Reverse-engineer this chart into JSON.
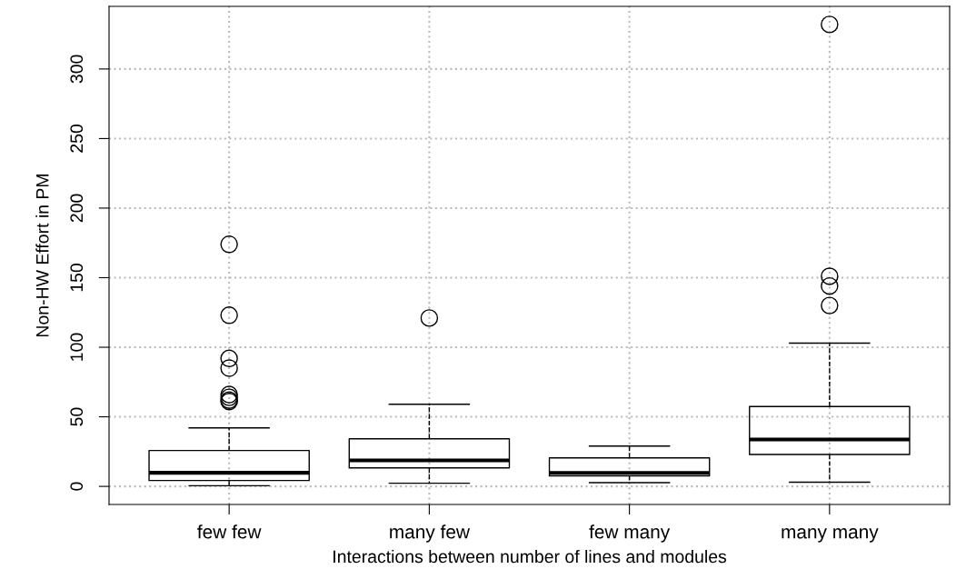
{
  "chart_data": {
    "type": "box",
    "xlabel": "Interactions between number of lines and modules",
    "ylabel": "Non-HW Effort in PM",
    "categories": [
      "few few",
      "many few",
      "few many",
      "many many"
    ],
    "boxes": [
      {
        "low": 0.5,
        "q1": 4.2,
        "median": 9.8,
        "q3": 25.8,
        "high": 42,
        "outliers": [
          174,
          123,
          92,
          85,
          66,
          64,
          62,
          61
        ]
      },
      {
        "low": 2.3,
        "q1": 13.3,
        "median": 18.7,
        "q3": 34.2,
        "high": 59,
        "outliers": [
          121
        ]
      },
      {
        "low": 2.7,
        "q1": 7.6,
        "median": 9.7,
        "q3": 20.5,
        "high": 29
      },
      {
        "low": 3,
        "q1": 22.9,
        "median": 33.7,
        "q3": 57.4,
        "high": 103,
        "outliers": [
          332,
          151,
          144,
          130
        ]
      }
    ],
    "color": "#000000",
    "ylim": [
      -13,
      345
    ],
    "yticks": [
      0,
      50,
      100,
      150,
      200,
      250,
      300
    ],
    "grid": true,
    "line_style": "dashed"
  }
}
